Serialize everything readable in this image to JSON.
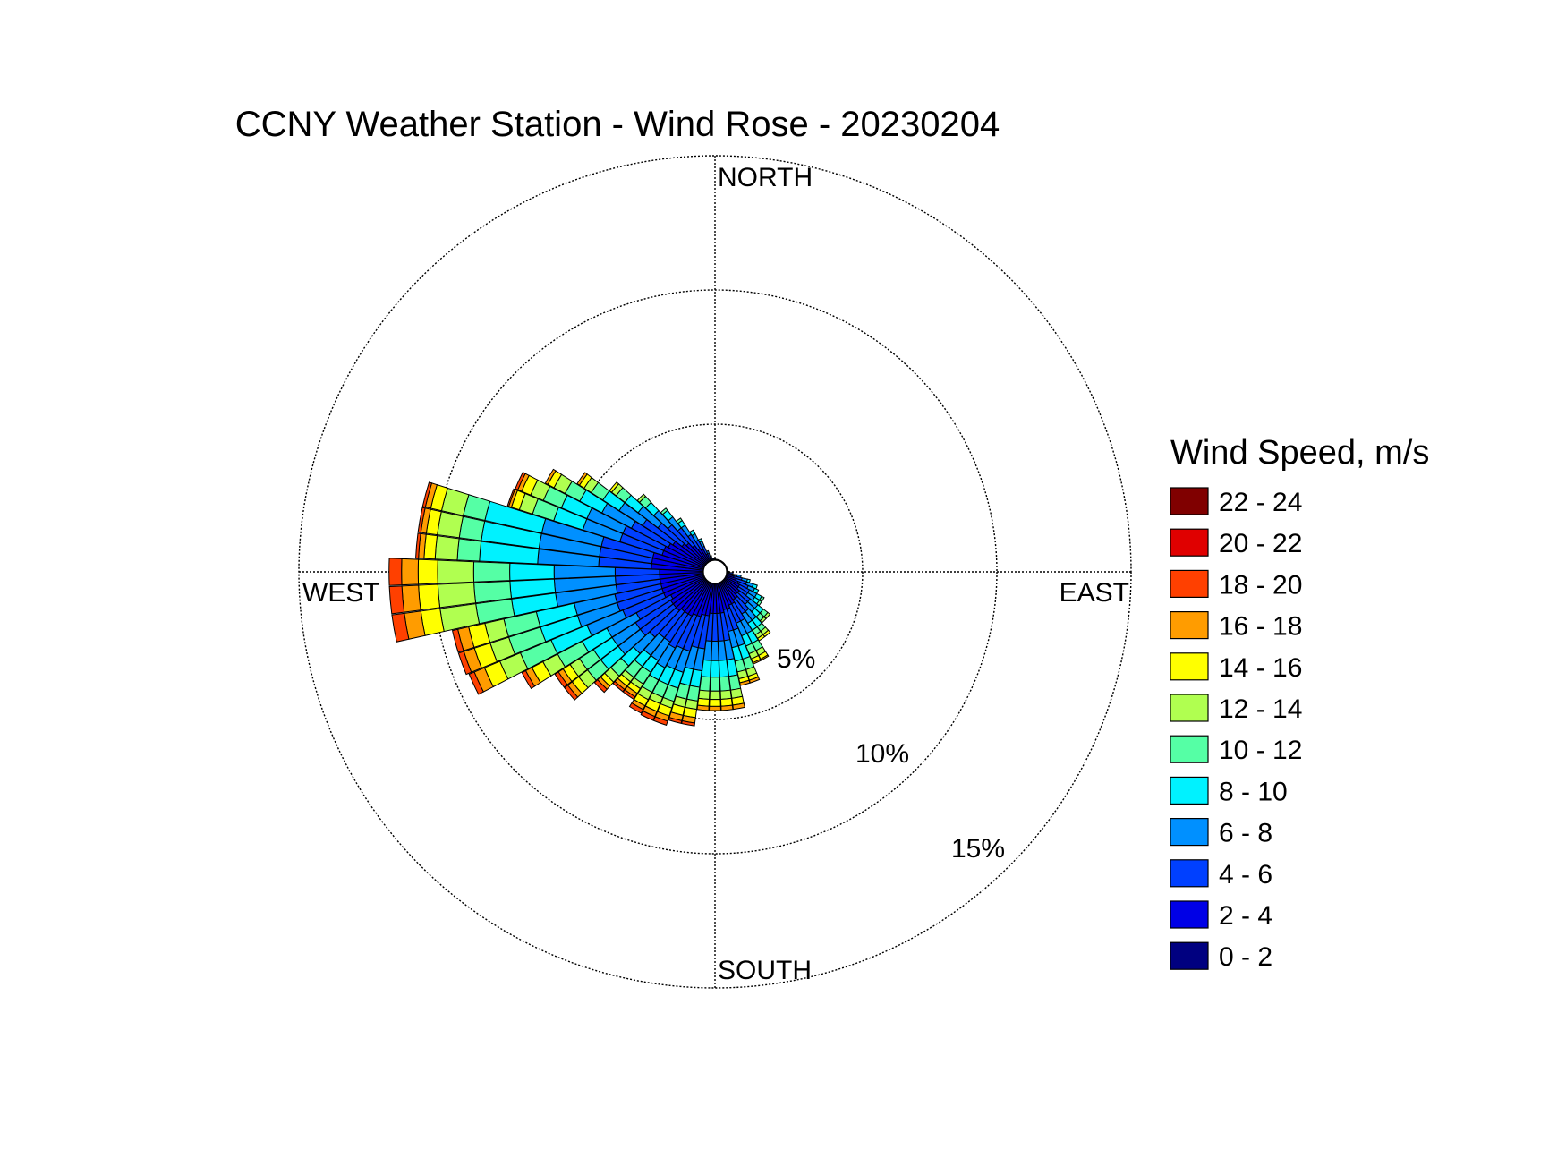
{
  "chart_data": {
    "type": "wind-rose",
    "title": "CCNY Weather Station - Wind Rose - 20230204",
    "directions": {
      "north": "NORTH",
      "south": "SOUTH",
      "east": "EAST",
      "west": "WEST"
    },
    "ring_labels": [
      "5%",
      "10%",
      "15%"
    ],
    "ring_values": [
      5,
      10,
      15
    ],
    "rmax": 15,
    "legend": {
      "title": "Wind Speed, m/s",
      "placement": "right",
      "bins": [
        {
          "label": "22 - 24",
          "color": "#800000"
        },
        {
          "label": "20 - 22",
          "color": "#e00000"
        },
        {
          "label": "18 - 20",
          "color": "#ff4000"
        },
        {
          "label": "16 - 18",
          "color": "#ff9c00"
        },
        {
          "label": "14 - 16",
          "color": "#ffff00"
        },
        {
          "label": "12 - 14",
          "color": "#b0ff50"
        },
        {
          "label": "10 - 12",
          "color": "#55ffa5"
        },
        {
          "label": "8 - 10",
          "color": "#00f2ff"
        },
        {
          "label": "6 - 8",
          "color": "#0090ff"
        },
        {
          "label": "4 - 6",
          "color": "#0040ff"
        },
        {
          "label": "2 - 4",
          "color": "#0000e6"
        },
        {
          "label": "0 - 2",
          "color": "#000080"
        }
      ]
    },
    "sectors": [
      {
        "dir": 200,
        "cum": [
          0.3,
          1.7,
          3.0,
          3.8,
          4.4,
          4.9,
          5.15,
          5.45,
          5.65,
          5.8
        ]
      },
      {
        "dir": 205,
        "cum": [
          0.3,
          1.7,
          3.0,
          3.8,
          4.4,
          4.9,
          5.15,
          5.45,
          5.65,
          5.8
        ]
      },
      {
        "dir": 210,
        "cum": [
          0.3,
          1.8,
          3.1,
          3.9,
          4.4,
          4.9,
          5.2,
          5.45,
          5.6,
          5.75
        ]
      },
      {
        "dir": 215,
        "cum": [
          0.3,
          1.8,
          3.0,
          3.8,
          4.3,
          4.8,
          5.0,
          5.2,
          5.35,
          5.45
        ]
      },
      {
        "dir": 220,
        "cum": [
          0.3,
          1.8,
          3.0,
          3.8,
          4.3,
          4.8,
          5.0,
          5.2,
          5.35,
          5.45
        ]
      },
      {
        "dir": 225,
        "cum": [
          0.3,
          1.9,
          3.2,
          4.0,
          4.6,
          5.1,
          5.4,
          5.6,
          5.75,
          5.9
        ]
      },
      {
        "dir": 230,
        "cum": [
          0.3,
          1.9,
          3.4,
          4.4,
          5.2,
          5.8,
          6.2,
          6.5,
          6.7,
          6.85
        ]
      },
      {
        "dir": 235,
        "cum": [
          0.3,
          1.9,
          3.4,
          4.4,
          5.2,
          5.8,
          6.2,
          6.5,
          6.7,
          6.85
        ]
      },
      {
        "dir": 240,
        "cum": [
          0.3,
          1.8,
          3.2,
          4.4,
          5.4,
          6.4,
          7.0,
          7.45,
          7.7,
          7.85
        ]
      },
      {
        "dir": 245,
        "cum": [
          0.3,
          2.0,
          3.6,
          5.0,
          6.4,
          7.6,
          8.4,
          9.0,
          9.4,
          9.6
        ]
      },
      {
        "dir": 250,
        "cum": [
          0.3,
          2.0,
          3.7,
          5.2,
          6.6,
          7.8,
          8.5,
          9.1,
          9.5,
          9.7
        ]
      },
      {
        "dir": 255,
        "cum": [
          0.3,
          2.0,
          3.7,
          5.2,
          6.6,
          7.8,
          8.5,
          9.1,
          9.5,
          9.7
        ]
      },
      {
        "dir": 260,
        "cum": [
          0.3,
          2.0,
          3.6,
          5.8,
          7.4,
          8.7,
          10.0,
          10.7,
          11.3,
          11.75
        ]
      },
      {
        "dir": 265,
        "cum": [
          0.3,
          2.0,
          3.6,
          5.8,
          7.4,
          8.7,
          10.0,
          10.7,
          11.3,
          11.75
        ]
      },
      {
        "dir": 270,
        "cum": [
          0.3,
          2.0,
          3.6,
          5.8,
          7.4,
          8.7,
          10.0,
          10.7,
          11.3,
          11.75
        ]
      },
      {
        "dir": 275,
        "cum": [
          0.3,
          2.3,
          4.2,
          6.4,
          8.5,
          9.3,
          10.1,
          10.5,
          10.7,
          10.8
        ]
      },
      {
        "dir": 280,
        "cum": [
          0.3,
          2.3,
          4.2,
          6.4,
          8.5,
          9.3,
          10.1,
          10.5,
          10.7,
          10.8
        ]
      },
      {
        "dir": 285,
        "cum": [
          0.3,
          2.3,
          4.2,
          6.4,
          8.5,
          9.3,
          10.1,
          10.5,
          10.7,
          10.8
        ]
      },
      {
        "dir": 290,
        "cum": [
          0.3,
          2.0,
          3.6,
          5.0,
          6.1,
          6.9,
          7.4,
          7.7,
          7.8,
          7.85
        ]
      },
      {
        "dir": 295,
        "cum": [
          0.3,
          2.0,
          3.6,
          5.0,
          6.0,
          6.7,
          7.2,
          7.55,
          7.7,
          7.8
        ]
      },
      {
        "dir": 300,
        "cum": [
          0.3,
          1.9,
          3.4,
          4.6,
          5.5,
          6.1,
          6.55,
          6.8,
          6.9
        ]
      },
      {
        "dir": 305,
        "cum": [
          0.3,
          1.8,
          3.1,
          4.1,
          4.8,
          5.3,
          5.6,
          5.8,
          5.9
        ]
      },
      {
        "dir": 310,
        "cum": [
          0.3,
          1.5,
          2.6,
          3.5,
          4.1,
          4.5,
          4.7,
          4.8
        ]
      },
      {
        "dir": 315,
        "cum": [
          0.3,
          1.4,
          2.3,
          3.0,
          3.4,
          3.7,
          3.8
        ]
      },
      {
        "dir": 320,
        "cum": [
          0.3,
          1.2,
          2.0,
          2.5,
          2.8,
          2.9
        ]
      },
      {
        "dir": 325,
        "cum": [
          0.3,
          1.0,
          1.6,
          2.0,
          2.2,
          2.3
        ]
      },
      {
        "dir": 330,
        "cum": [
          0.3,
          0.9,
          1.3,
          1.55,
          1.7
        ]
      },
      {
        "dir": 335,
        "cum": [
          0.3,
          0.7,
          1.0,
          1.2,
          1.3
        ]
      },
      {
        "dir": 340,
        "cum": [
          0.3,
          0.5,
          0.7,
          0.8
        ]
      },
      {
        "dir": 345,
        "cum": [
          0.3,
          0.45,
          0.6
        ]
      },
      {
        "dir": 350,
        "cum": [
          0.3,
          0.4,
          0.5
        ]
      },
      {
        "dir": 355,
        "cum": [
          0.3,
          0.4,
          0.48
        ]
      },
      {
        "dir": 0,
        "cum": [
          0.3,
          0.4,
          0.48
        ]
      },
      {
        "dir": 5,
        "cum": [
          0.3,
          0.38,
          0.45
        ]
      },
      {
        "dir": 10,
        "cum": [
          0.3,
          0.38,
          0.45
        ]
      },
      {
        "dir": 15,
        "cum": [
          0.3,
          0.38,
          0.45
        ]
      },
      {
        "dir": 20,
        "cum": [
          0.3,
          0.38,
          0.45
        ]
      },
      {
        "dir": 25,
        "cum": [
          0.3,
          0.38,
          0.45
        ]
      },
      {
        "dir": 30,
        "cum": [
          0.3,
          0.38,
          0.45
        ]
      },
      {
        "dir": 35,
        "cum": [
          0.3,
          0.38,
          0.45
        ]
      },
      {
        "dir": 40,
        "cum": [
          0.3,
          0.38,
          0.45
        ]
      },
      {
        "dir": 45,
        "cum": [
          0.3,
          0.38,
          0.45
        ]
      },
      {
        "dir": 50,
        "cum": [
          0.3,
          0.38,
          0.45
        ]
      },
      {
        "dir": 55,
        "cum": [
          0.3,
          0.38,
          0.45
        ]
      },
      {
        "dir": 60,
        "cum": [
          0.3,
          0.38,
          0.45
        ]
      },
      {
        "dir": 65,
        "cum": [
          0.3,
          0.38,
          0.45
        ]
      },
      {
        "dir": 70,
        "cum": [
          0.3,
          0.38,
          0.45
        ]
      },
      {
        "dir": 75,
        "cum": [
          0.3,
          0.38,
          0.45
        ]
      },
      {
        "dir": 80,
        "cum": [
          0.3,
          0.38,
          0.45
        ]
      },
      {
        "dir": 85,
        "cum": [
          0.3,
          0.38,
          0.45
        ]
      },
      {
        "dir": 90,
        "cum": [
          0.3,
          0.4,
          0.5
        ]
      },
      {
        "dir": 95,
        "cum": [
          0.3,
          0.5,
          0.65
        ]
      },
      {
        "dir": 100,
        "cum": [
          0.3,
          0.6,
          0.8,
          0.95
        ]
      },
      {
        "dir": 105,
        "cum": [
          0.3,
          0.7,
          1.0,
          1.2,
          1.3
        ]
      },
      {
        "dir": 110,
        "cum": [
          0.3,
          0.8,
          1.2,
          1.45,
          1.6
        ]
      },
      {
        "dir": 115,
        "cum": [
          0.3,
          0.9,
          1.3,
          1.55,
          1.7
        ]
      },
      {
        "dir": 120,
        "cum": [
          0.3,
          1.0,
          1.4,
          1.7,
          1.9,
          2.0
        ]
      },
      {
        "dir": 125,
        "cum": [
          0.3,
          1.0,
          1.4,
          1.7,
          1.9,
          2.0
        ]
      },
      {
        "dir": 130,
        "cum": [
          0.3,
          1.1,
          1.6,
          1.95,
          2.2,
          2.4,
          2.5
        ]
      },
      {
        "dir": 135,
        "cum": [
          0.3,
          1.1,
          1.6,
          1.95,
          2.2,
          2.4,
          2.5
        ]
      },
      {
        "dir": 140,
        "cum": [
          0.3,
          1.2,
          1.8,
          2.2,
          2.5,
          2.7,
          2.85,
          2.95
        ]
      },
      {
        "dir": 145,
        "cum": [
          0.3,
          1.2,
          1.8,
          2.2,
          2.5,
          2.7,
          2.85,
          2.95
        ]
      },
      {
        "dir": 150,
        "cum": [
          0.3,
          1.3,
          2.0,
          2.5,
          2.9,
          3.2,
          3.4,
          3.55,
          3.6
        ]
      },
      {
        "dir": 155,
        "cum": [
          0.3,
          1.3,
          2.0,
          2.5,
          2.9,
          3.2,
          3.4,
          3.55,
          3.6
        ]
      },
      {
        "dir": 160,
        "cum": [
          0.3,
          1.4,
          2.2,
          2.8,
          3.3,
          3.7,
          3.95,
          4.1,
          4.2
        ]
      },
      {
        "dir": 165,
        "cum": [
          0.3,
          1.4,
          2.2,
          2.8,
          3.3,
          3.7,
          3.95,
          4.1,
          4.2
        ]
      },
      {
        "dir": 170,
        "cum": [
          0.3,
          1.5,
          2.5,
          3.2,
          3.8,
          4.3,
          4.6,
          4.85,
          5.0
        ]
      },
      {
        "dir": 175,
        "cum": [
          0.3,
          1.5,
          2.5,
          3.2,
          3.8,
          4.3,
          4.6,
          4.85,
          5.0
        ]
      },
      {
        "dir": 180,
        "cum": [
          0.3,
          1.5,
          2.5,
          3.2,
          3.8,
          4.3,
          4.6,
          4.85,
          5.0
        ]
      },
      {
        "dir": 185,
        "cum": [
          0.3,
          1.5,
          2.5,
          3.2,
          3.8,
          4.3,
          4.6,
          4.85,
          5.0
        ]
      },
      {
        "dir": 190,
        "cum": [
          0.3,
          1.6,
          2.8,
          3.6,
          4.2,
          4.7,
          5.0,
          5.3,
          5.5,
          5.6
        ]
      },
      {
        "dir": 195,
        "cum": [
          0.3,
          1.6,
          2.8,
          3.6,
          4.2,
          4.7,
          5.0,
          5.3,
          5.5,
          5.6
        ]
      }
    ]
  }
}
